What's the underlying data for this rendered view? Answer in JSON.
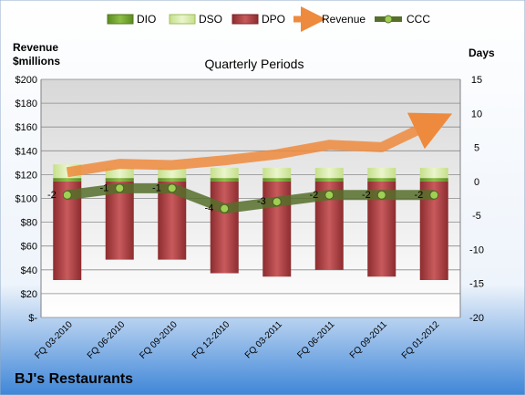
{
  "colors": {
    "dio": "#6f9e2e",
    "dso": "#d3e7a0",
    "dpo": "#a73c3e",
    "revenue": "#ee8a3d",
    "ccc_line": "#566f2a",
    "ccc_point": "#9fcf55"
  },
  "chart_data": {
    "type": "bar",
    "company": "BJ's Restaurants",
    "title": "Quarterly Periods",
    "y_left_label": [
      "Revenue",
      "$millions"
    ],
    "y_right_label": "Days",
    "y_left_range": [
      0,
      200
    ],
    "y_right_range": [
      -20,
      15
    ],
    "y_left_ticks": [
      "$-",
      "$20",
      "$40",
      "$60",
      "$80",
      "$100",
      "$120",
      "$140",
      "$160",
      "$180",
      "$200"
    ],
    "y_right_ticks": [
      "-20",
      "-15",
      "-10",
      "-5",
      "0",
      "5",
      "10",
      "15"
    ],
    "grid": true,
    "legend_position": "top",
    "categories": [
      "FQ 03-2010",
      "FQ 06-2010",
      "FQ 09-2010",
      "FQ 12-2010",
      "FQ 03-2011",
      "FQ 06-2011",
      "FQ 09-2011",
      "FQ 01-2012"
    ],
    "series": [
      {
        "name": "DIO",
        "axis": "right",
        "values": [
          0.5,
          0.5,
          0.5,
          0.5,
          0.5,
          0.5,
          0.5,
          0.5
        ]
      },
      {
        "name": "DSO",
        "axis": "right",
        "values": [
          2,
          1.5,
          1.5,
          1.5,
          1.5,
          1.5,
          1.5,
          1.5
        ]
      },
      {
        "name": "DPO",
        "axis": "right",
        "values": [
          -14.5,
          -11.5,
          -11.5,
          -13.5,
          -14,
          -13,
          -14,
          -14.5
        ]
      },
      {
        "name": "Revenue",
        "axis": "left",
        "values": [
          122,
          129,
          128,
          132,
          137,
          145,
          143,
          164
        ]
      },
      {
        "name": "CCC",
        "axis": "right",
        "values": [
          -2,
          -1,
          -1,
          -4,
          -3,
          -2,
          -2,
          -2
        ],
        "labels": [
          "-2",
          "-1",
          "-1",
          "-4",
          "-3",
          "-2",
          "-2",
          "-2"
        ]
      }
    ]
  }
}
